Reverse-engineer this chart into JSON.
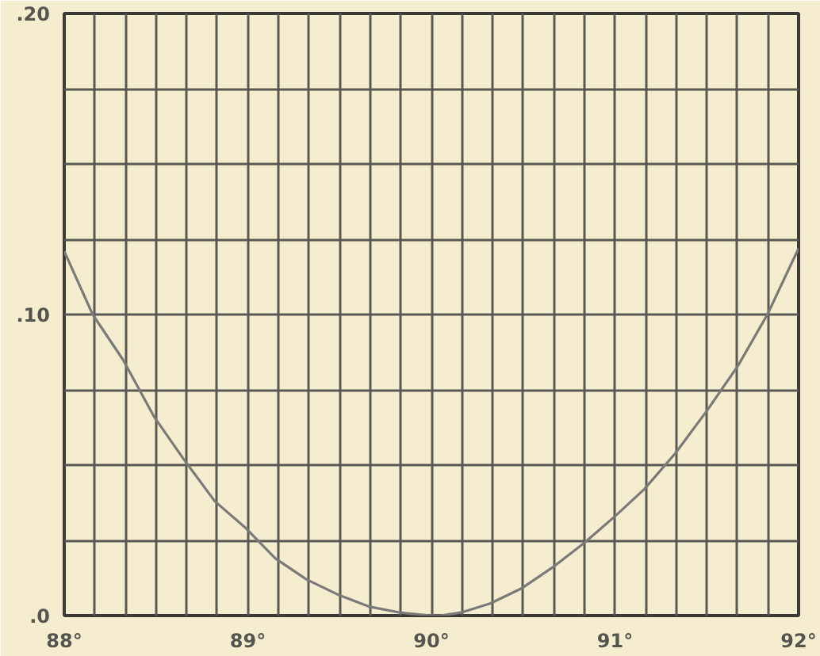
{
  "chart_data": {
    "type": "line",
    "grid": true,
    "x": [
      88.0,
      88.155,
      88.32,
      88.49,
      88.65,
      88.82,
      88.99,
      89.15,
      89.32,
      89.49,
      89.66,
      89.83,
      90.0,
      90.05,
      90.16,
      90.32,
      90.49,
      90.66,
      90.83,
      91.0,
      91.16,
      91.33,
      91.5,
      91.67,
      91.83,
      92.0
    ],
    "series": [
      {
        "color": "#7a7a78",
        "values": [
          0.121,
          0.1,
          0.085,
          0.066,
          0.052,
          0.038,
          0.029,
          0.019,
          0.012,
          0.007,
          0.003,
          0.001,
          0.0,
          0.0,
          0.001,
          0.004,
          0.009,
          0.016,
          0.024,
          0.033,
          0.042,
          0.054,
          0.068,
          0.083,
          0.1,
          0.122
        ]
      }
    ],
    "xlim": [
      88,
      92
    ],
    "ylim": [
      0,
      0.2
    ],
    "xticks": [
      {
        "value": 88,
        "label": "88°"
      },
      {
        "value": 88.167,
        "label": null
      },
      {
        "value": 88.333,
        "label": null
      },
      {
        "value": 88.5,
        "label": null
      },
      {
        "value": 88.667,
        "label": null
      },
      {
        "value": 88.833,
        "label": null
      },
      {
        "value": 89,
        "label": "89°"
      },
      {
        "value": 89.167,
        "label": null
      },
      {
        "value": 89.333,
        "label": null
      },
      {
        "value": 89.5,
        "label": null
      },
      {
        "value": 89.667,
        "label": null
      },
      {
        "value": 89.833,
        "label": null
      },
      {
        "value": 90,
        "label": "90°"
      },
      {
        "value": 90.167,
        "label": null
      },
      {
        "value": 90.333,
        "label": null
      },
      {
        "value": 90.5,
        "label": null
      },
      {
        "value": 90.667,
        "label": null
      },
      {
        "value": 90.833,
        "label": null
      },
      {
        "value": 91,
        "label": "91°"
      },
      {
        "value": 91.167,
        "label": null
      },
      {
        "value": 91.333,
        "label": null
      },
      {
        "value": 91.5,
        "label": null
      },
      {
        "value": 91.667,
        "label": null
      },
      {
        "value": 91.833,
        "label": null
      },
      {
        "value": 92,
        "label": "92°"
      }
    ],
    "yticks": [
      {
        "value": 0,
        "label": ".0"
      },
      {
        "value": 0.025,
        "label": null
      },
      {
        "value": 0.05,
        "label": null
      },
      {
        "value": 0.075,
        "label": null
      },
      {
        "value": 0.1,
        "label": ".10"
      },
      {
        "value": 0.125,
        "label": null
      },
      {
        "value": 0.15,
        "label": null
      },
      {
        "value": 0.175,
        "label": null
      },
      {
        "value": 0.2,
        "label": ".20"
      }
    ]
  }
}
